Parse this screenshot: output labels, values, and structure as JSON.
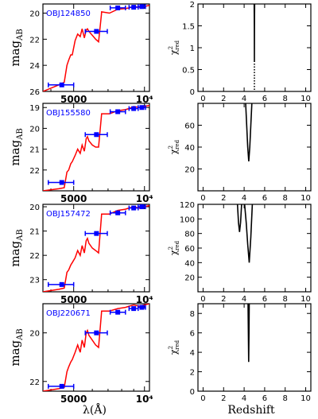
{
  "figure": {
    "x_axis_label_left": "λ(Å)",
    "x_axis_label_right": "Redshift",
    "y_axis_label_left_main": "mag",
    "y_axis_label_left_sub": "AB",
    "y_axis_label_right_main": "χ",
    "y_axis_label_right_sup": "2",
    "y_axis_label_right_sub": "red",
    "colors": {
      "sed_line": "#ff0000",
      "photometry": "#0000ff",
      "object_label": "#0000ff",
      "chi2_curve": "#000000",
      "axes": "#000000"
    }
  },
  "chart_data": [
    {
      "panel": "sed",
      "row": 0,
      "type": "line",
      "object_label": "OBJ124850",
      "x_scale": "log",
      "xlim": [
        3700,
        10500
      ],
      "ylim": [
        26,
        19.3
      ],
      "x_tick_labels": [
        {
          "value": 5000,
          "label": "5000"
        },
        {
          "value": 10000,
          "label": "10⁴"
        }
      ],
      "y_tick_labels": [
        {
          "value": 20,
          "label": "20"
        },
        {
          "value": 22,
          "label": "22"
        },
        {
          "value": 24,
          "label": "24"
        },
        {
          "value": 26,
          "label": "26"
        }
      ],
      "model": {
        "x": [
          3700,
          4320,
          4560,
          4680,
          4760,
          4860,
          4930,
          5070,
          5200,
          5330,
          5430,
          5550,
          5650,
          5720,
          5800,
          6000,
          6200,
          6380,
          6560,
          6570,
          7100,
          7700,
          8300,
          8600,
          9000,
          9500,
          10000,
          10500
        ],
        "y": [
          26,
          25.5,
          25.3,
          24,
          23.6,
          23.2,
          23.2,
          22.1,
          21.6,
          21.8,
          21.2,
          21.9,
          21.3,
          21.2,
          21.4,
          21.7,
          22,
          22.2,
          20.1,
          19.9,
          20,
          19.7,
          19.65,
          19.6,
          19.5,
          19.55,
          19.5,
          19.4
        ]
      },
      "photometry": [
        {
          "x": 4450,
          "y": 25.5,
          "xerr": [
            3900,
            5000
          ]
        },
        {
          "x": 6250,
          "y": 21.4,
          "xerr": [
            5600,
            6950
          ]
        },
        {
          "x": 7700,
          "y": 19.6,
          "xerr": [
            7150,
            8300
          ]
        },
        {
          "x": 9000,
          "y": 19.55,
          "xerr": [
            8600,
            9400
          ]
        },
        {
          "x": 9750,
          "y": 19.5,
          "xerr": [
            9400,
            10100
          ]
        }
      ]
    },
    {
      "panel": "sed",
      "row": 1,
      "type": "line",
      "object_label": "OBJ155580",
      "x_scale": "log",
      "xlim": [
        3700,
        10500
      ],
      "ylim": [
        23,
        18.8
      ],
      "x_tick_labels": [
        {
          "value": 5000,
          "label": "5000"
        },
        {
          "value": 10000,
          "label": "10⁴"
        }
      ],
      "y_tick_labels": [
        {
          "value": 19,
          "label": "19"
        },
        {
          "value": 20,
          "label": "20"
        },
        {
          "value": 21,
          "label": "21"
        },
        {
          "value": 22,
          "label": "22"
        }
      ],
      "model": {
        "x": [
          3700,
          4320,
          4560,
          4680,
          4760,
          4860,
          4930,
          5070,
          5200,
          5330,
          5430,
          5550,
          5650,
          5720,
          5800,
          6000,
          6200,
          6380,
          6560,
          6570,
          7100,
          7700,
          8300,
          8600,
          9000,
          9500,
          10000,
          10500
        ],
        "y": [
          23,
          22.9,
          22.85,
          22.1,
          22,
          21.7,
          21.6,
          21.3,
          21,
          21.2,
          20.8,
          21.1,
          20.5,
          20.4,
          20.6,
          20.8,
          20.9,
          20.9,
          19.4,
          19.3,
          19.3,
          19.15,
          19.1,
          19.05,
          18.95,
          19,
          18.95,
          18.9
        ]
      },
      "photometry": [
        {
          "x": 4450,
          "y": 22.6,
          "xerr": [
            3900,
            5000
          ]
        },
        {
          "x": 6250,
          "y": 20.3,
          "xerr": [
            5600,
            6950
          ]
        },
        {
          "x": 7700,
          "y": 19.2,
          "xerr": [
            7150,
            8300
          ]
        },
        {
          "x": 9000,
          "y": 19.05,
          "xerr": [
            8600,
            9400
          ]
        },
        {
          "x": 9750,
          "y": 19.0,
          "xerr": [
            9400,
            10100
          ]
        }
      ]
    },
    {
      "panel": "sed",
      "row": 2,
      "type": "line",
      "object_label": "OBJ157472",
      "x_scale": "log",
      "xlim": [
        3700,
        10500
      ],
      "ylim": [
        23.5,
        19.9
      ],
      "x_tick_labels": [
        {
          "value": 5000,
          "label": "5000"
        },
        {
          "value": 10000,
          "label": "10⁴"
        }
      ],
      "y_tick_labels": [
        {
          "value": 20,
          "label": "20"
        },
        {
          "value": 21,
          "label": "21"
        },
        {
          "value": 22,
          "label": "22"
        },
        {
          "value": 23,
          "label": "23"
        }
      ],
      "model": {
        "x": [
          3700,
          4320,
          4560,
          4680,
          4760,
          4860,
          4930,
          5070,
          5200,
          5330,
          5430,
          5550,
          5650,
          5720,
          5800,
          6000,
          6200,
          6380,
          6560,
          6570,
          7100,
          7700,
          8300,
          8600,
          9000,
          9500,
          10000,
          10500
        ],
        "y": [
          23.5,
          23.4,
          23.35,
          22.7,
          22.6,
          22.4,
          22.3,
          22.1,
          21.8,
          22,
          21.6,
          21.9,
          21.4,
          21.3,
          21.5,
          21.7,
          21.8,
          21.9,
          20.4,
          20.3,
          20.3,
          20.15,
          20.1,
          20.05,
          20,
          20.05,
          20,
          19.95
        ]
      },
      "photometry": [
        {
          "x": 4450,
          "y": 23.2,
          "xerr": [
            3900,
            5000
          ]
        },
        {
          "x": 6250,
          "y": 21.1,
          "xerr": [
            5600,
            6950
          ]
        },
        {
          "x": 7700,
          "y": 20.25,
          "xerr": [
            7150,
            8300
          ]
        },
        {
          "x": 9000,
          "y": 20.05,
          "xerr": [
            8600,
            9400
          ]
        },
        {
          "x": 9750,
          "y": 20.0,
          "xerr": [
            9400,
            10100
          ]
        }
      ]
    },
    {
      "panel": "sed",
      "row": 3,
      "type": "line",
      "object_label": "OBJ220671",
      "x_scale": "log",
      "xlim": [
        3700,
        10500
      ],
      "ylim": [
        22.4,
        18.8
      ],
      "x_tick_labels": [
        {
          "value": 5000,
          "label": "5000"
        },
        {
          "value": 10000,
          "label": "10⁴"
        }
      ],
      "y_tick_labels": [
        {
          "value": 20,
          "label": "20"
        },
        {
          "value": 22,
          "label": "22"
        }
      ],
      "model": {
        "x": [
          3700,
          4320,
          4560,
          4680,
          4760,
          4860,
          4930,
          5070,
          5200,
          5330,
          5430,
          5550,
          5650,
          5720,
          5800,
          6000,
          6200,
          6380,
          6560,
          6570,
          7100,
          7700,
          8300,
          8600,
          9000,
          9500,
          10000,
          10500
        ],
        "y": [
          22.4,
          22.3,
          22.25,
          21.6,
          21.4,
          21.2,
          21.1,
          20.8,
          20.5,
          20.8,
          20.3,
          20.6,
          20,
          19.9,
          20.1,
          20.3,
          20.5,
          20.6,
          19.2,
          19.1,
          19.1,
          19,
          18.95,
          18.9,
          18.85,
          18.9,
          18.85,
          18.8
        ]
      },
      "photometry": [
        {
          "x": 4450,
          "y": 22.2,
          "xerr": [
            3900,
            5000
          ]
        },
        {
          "x": 6250,
          "y": 20.0,
          "xerr": [
            5600,
            6950
          ]
        },
        {
          "x": 7700,
          "y": 19.15,
          "xerr": [
            7150,
            8300
          ]
        },
        {
          "x": 9000,
          "y": 19.0,
          "xerr": [
            8600,
            9400
          ]
        },
        {
          "x": 9750,
          "y": 18.95,
          "xerr": [
            9400,
            10100
          ]
        }
      ]
    },
    {
      "panel": "chi2",
      "row": 0,
      "type": "line",
      "xlim": [
        -0.5,
        10.5
      ],
      "ylim": [
        0,
        2
      ],
      "x_tick_labels": [
        "0",
        "2",
        "4",
        "6",
        "8",
        "10"
      ],
      "y_tick_labels": [
        {
          "value": 0,
          "label": "0"
        },
        {
          "value": 0.5,
          "label": "0.5"
        },
        {
          "value": 1,
          "label": "1"
        },
        {
          "value": 1.5,
          "label": "1.5"
        },
        {
          "value": 2,
          "label": "2"
        }
      ],
      "series": [
        {
          "x": [
            4.98,
            4.99,
            5.0,
            5.01,
            5.02
          ],
          "y": [
            2,
            1.5,
            0.7,
            1.5,
            2
          ],
          "style": "solid"
        },
        {
          "x": [
            5.0,
            5.0
          ],
          "y": [
            0.7,
            0.0
          ],
          "style": "dotted"
        }
      ]
    },
    {
      "panel": "chi2",
      "row": 1,
      "type": "line",
      "xlim": [
        -0.5,
        10.5
      ],
      "ylim": [
        0,
        80
      ],
      "x_tick_labels": [
        "0",
        "2",
        "4",
        "6",
        "8",
        "10"
      ],
      "y_tick_labels": [
        {
          "value": 20,
          "label": "20"
        },
        {
          "value": 40,
          "label": "40"
        },
        {
          "value": 60,
          "label": "60"
        }
      ],
      "series": [
        {
          "x": [
            4.15,
            4.25,
            4.35,
            4.45,
            4.55,
            4.65,
            4.75
          ],
          "y": [
            80,
            60,
            40,
            27,
            40,
            60,
            80
          ],
          "style": "solid"
        }
      ]
    },
    {
      "panel": "chi2",
      "row": 2,
      "type": "line",
      "xlim": [
        -0.5,
        10.5
      ],
      "ylim": [
        0,
        120
      ],
      "x_tick_labels": [
        "0",
        "2",
        "4",
        "6",
        "8",
        "10"
      ],
      "y_tick_labels": [
        {
          "value": 20,
          "label": "20"
        },
        {
          "value": 40,
          "label": "40"
        },
        {
          "value": 60,
          "label": "60"
        },
        {
          "value": 80,
          "label": "80"
        },
        {
          "value": 100,
          "label": "100"
        },
        {
          "value": 120,
          "label": "120"
        }
      ],
      "series": [
        {
          "x": [
            3.35,
            3.45,
            3.55,
            3.65,
            3.75
          ],
          "y": [
            120,
            95,
            82,
            95,
            120
          ],
          "style": "solid"
        },
        {
          "x": [
            4.05,
            4.2,
            4.35,
            4.5,
            4.65,
            4.8
          ],
          "y": [
            120,
            95,
            65,
            40,
            75,
            120
          ],
          "style": "solid"
        }
      ]
    },
    {
      "panel": "chi2",
      "row": 3,
      "type": "line",
      "xlim": [
        -0.5,
        10.5
      ],
      "ylim": [
        0,
        9
      ],
      "x_tick_labels": [
        "0",
        "2",
        "4",
        "6",
        "8",
        "10"
      ],
      "y_tick_labels": [
        {
          "value": 0,
          "label": "0"
        },
        {
          "value": 2,
          "label": "2"
        },
        {
          "value": 4,
          "label": "4"
        },
        {
          "value": 6,
          "label": "6"
        },
        {
          "value": 8,
          "label": "8"
        }
      ],
      "series": [
        {
          "x": [
            4.38,
            4.41,
            4.44,
            4.47,
            4.5
          ],
          "y": [
            9,
            6,
            3,
            6,
            9
          ],
          "style": "solid"
        }
      ]
    }
  ]
}
